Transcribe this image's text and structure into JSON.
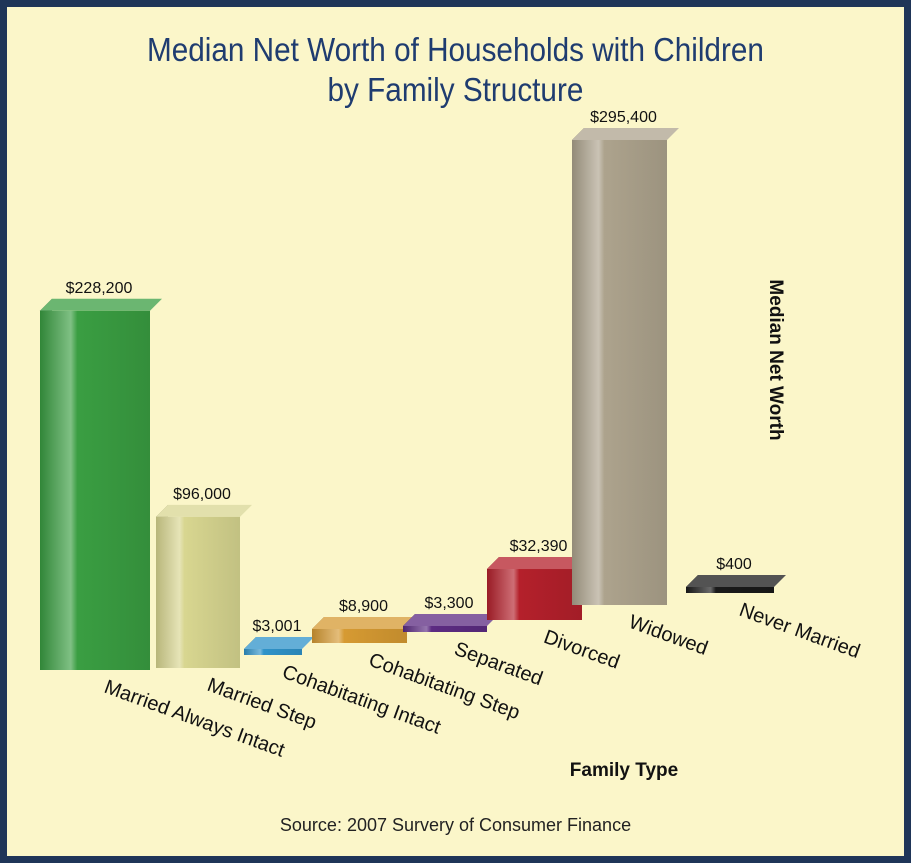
{
  "chart_data": {
    "type": "bar",
    "title_lines": [
      "Median Net Worth of Households with Children",
      "by Family Structure"
    ],
    "xlabel": "Family Type",
    "ylabel": "Median Net Worth",
    "source": "Source: 2007 Survery of Consumer Finance",
    "categories": [
      "Married Always Intact",
      "Married Step",
      "Cohabitating Intact",
      "Cohabitating Step",
      "Separated",
      "Divorced",
      "Widowed",
      "Never Married"
    ],
    "values": [
      228200,
      96000,
      3001,
      8900,
      3300,
      32390,
      295400,
      400
    ],
    "value_labels": [
      "$228,200",
      "$96,000",
      "$3,001",
      "$8,900",
      "$3,300",
      "$32,390",
      "$295,400",
      "$400"
    ],
    "colors": [
      "#3a9e42",
      "#d8d690",
      "#2f93c9",
      "#d69a32",
      "#5c2b82",
      "#b4202b",
      "#ada38d",
      "#1a1a1a"
    ],
    "grid": false,
    "legend": "none"
  }
}
